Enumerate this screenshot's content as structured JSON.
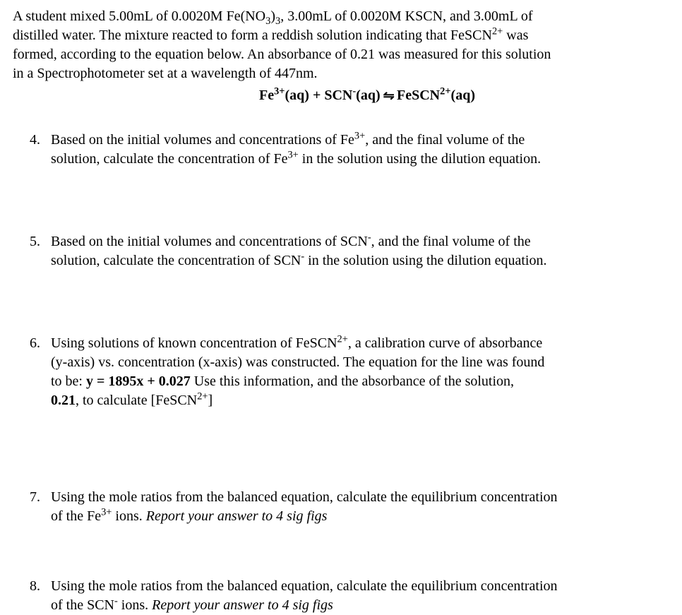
{
  "intro": {
    "line1a": "A student mixed 5.00mL of 0.0020M Fe(NO",
    "line1b": ")",
    "line1c": ", 3.00mL of 0.0020M KSCN, and 3.00mL of",
    "line2a": "distilled water.  The mixture reacted to form a reddish solution indicating that FeSCN",
    "line2b": " was",
    "line3": "formed, according to the equation below.  An absorbance of 0.21 was measured for this solution",
    "line4": "in a Spectrophotometer set at a wavelength of 447nm."
  },
  "equation": {
    "lhs1": "Fe",
    "lhs1sup": "3+",
    "aq1": "(aq)  +  SCN",
    "scn_sup": "-",
    "aq2": "(aq)  ",
    "arrow": "⇋",
    "rhs": "  FeSCN",
    "rhs_sup": "2+",
    "aq3": "(aq)"
  },
  "q4": {
    "num": "4.",
    "l1a": "Based on the initial volumes and concentrations of Fe",
    "l1sup": "3+",
    "l1b": ", and the final volume of the",
    "l2a": "solution, calculate the concentration of Fe",
    "l2sup": "3+",
    "l2b": " in the solution using the dilution equation."
  },
  "q5": {
    "num": "5.",
    "l1a": "Based on the initial volumes and concentrations of SCN",
    "l1sup": "-",
    "l1b": ", and the final volume of the",
    "l2a": "solution, calculate the concentration of SCN",
    "l2sup": "-",
    "l2b": " in the solution using the dilution equation."
  },
  "q6": {
    "num": "6.",
    "l1a": "Using solutions of known concentration of FeSCN",
    "l1sup": "2+",
    "l1b": ", a calibration curve of absorbance",
    "l2": "(y-axis) vs. concentration (x-axis) was constructed.  The equation for the line was found",
    "l3a": "to be:    ",
    "l3b": "y = 1895x + 0.027",
    "l3c": "     Use this information, and the absorbance of the solution,",
    "l4a": "0.21",
    "l4b": ", to calculate [FeSCN",
    "l4sup": "2+",
    "l4c": "]"
  },
  "q7": {
    "num": "7.",
    "l1": "Using the mole ratios from the balanced equation, calculate the equilibrium concentration",
    "l2a": "of the Fe",
    "l2sup": "3+",
    "l2b": " ions. ",
    "l2c": "Report your answer to 4 sig figs"
  },
  "q8": {
    "num": "8.",
    "l1": "Using the mole ratios from the balanced equation, calculate the equilibrium concentration",
    "l2a": "of the SCN",
    "l2sup": "-",
    "l2b": " ions. ",
    "l2c": "Report your answer to 4 sig figs"
  }
}
